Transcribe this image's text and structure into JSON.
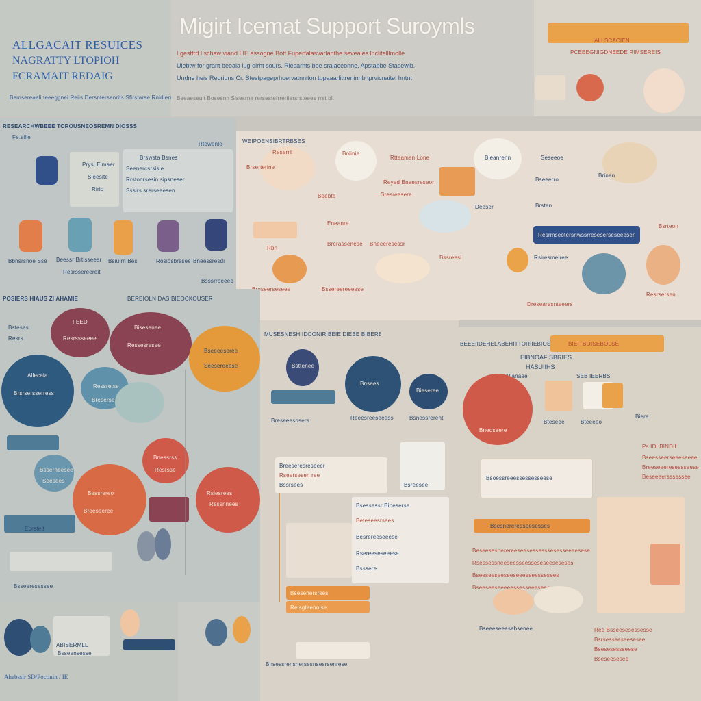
{
  "header": {
    "left_lines": [
      "ALLGACAIT RESUICES",
      "NAGRATTY LTOPIOH",
      "FCRAMAIT REDAIG"
    ],
    "left_footer": "Bemsereaeli teeeggnei Reiis Dersntersenrits Sfirstarse Rnidierres Rierssesri Sssrrs",
    "title": "Migirt Icemat Support Suroymls",
    "subtitle_lines": [
      "Lgestfrd l schaw viand I IE essogne Bott Fuperfalasvarlanthe seveales lnclitelllmolle",
      "Ulebtw for grant beeala lug oirht sours. Rlesarhts boe sralaceonne. Apstabbe Stasewlb.",
      "Undne heis Reoriuns Cr. Stestpageprhoervatnniton tppaaarlittreninnb tprvicnaitel hntnt"
    ],
    "subtitle_footer": "Beeaeseuit Bosesnn Sisesrne rersestefrreriiarsrsteees rrst bl.",
    "orange_bar_label": "",
    "right_label": "ALLSCACIEN",
    "right_sub": "PCEEEGNIGDNEEDE RIMSEREIS"
  },
  "left_top": {
    "heading": "RESEARCHWBEEE TOROUSNEOSREMN DIOSSS",
    "logo_label": "Fe.sllle",
    "card1_title": "Prysl Elmaer",
    "card1_lines": [
      "Sieesite",
      "Ririp"
    ],
    "card2_title": "Brswsta Bsnes",
    "card2_lines": [
      "Seenercsrsisie",
      "Rrstonrsesin sipsneser",
      "Sssirs srerseeesen"
    ],
    "tag": "Rtewenle",
    "icons": [
      "Bbnsrsnoe Sse",
      "Beessr Brtisseear",
      "Bsiuirn Bes",
      "Rosiosbrsseen",
      "Bneessresdi"
    ],
    "icons_sub": [
      "Resrssereereit",
      "Bsssrreeeee"
    ]
  },
  "center_top": {
    "heading": "WEIPOENSIBRTRBSES",
    "items": [
      "Reserrii",
      "Bolinie",
      "Rtteamen Lone",
      "Bieanrenn",
      "Seseeoe",
      "Brserterine",
      "Reyed Bnaesreseor",
      "Bseeerro",
      "Brinen",
      "Sresreesere",
      "Beebte",
      "Deeser",
      "Brsten",
      "Eneanre",
      "Bsrteon",
      "Brerassenese",
      "Rbn",
      "Bneeeresessr",
      "Rsiresmeiree",
      "Bssreesi"
    ],
    "navy_bar": "Resrmseotersnwssrreseserseseeeserese",
    "footer_items": [
      "Breseerseseee",
      "Bssereereeeese",
      "Dresearesnteeers",
      "Resrsersen"
    ]
  },
  "left_middle": {
    "heading": "POSIERS HIAUS ZI AHAMIE",
    "sub_heading": "BEREIOLN DASIBIEOCKOUSER",
    "circles": [
      {
        "label": "IIEED",
        "sub": "Resrssseeee"
      },
      {
        "label": "Bisesenee",
        "sub": "Ressesresee"
      },
      {
        "label": "Bseeeeseree",
        "sub": "Seesereeese"
      },
      {
        "label": "Allecaia",
        "sub": "Brsrsersserress"
      },
      {
        "label": "Ressretse",
        "sub": "Breserse"
      },
      {
        "label": "Bnessrss",
        "sub": "Resrsse"
      },
      {
        "label": "Bessrereo",
        "sub": "Breeseeree"
      },
      {
        "label": "Rsiesrees",
        "sub": "Ressnnees"
      },
      {
        "label": "Bsserneesee",
        "sub": "Seesees"
      }
    ],
    "side_labels": [
      "Bsteses",
      "Resrs",
      "Ebrsteit"
    ],
    "bottom_label": "Bsseeresessee"
  },
  "center_middle": {
    "heading": "MUSESNESH IDOONIRIBEIE DIEBE BIBEREE",
    "circles": [
      "Bsttenee",
      "Bnsaes",
      "Bieseree"
    ],
    "labels": [
      "Breseeesnsers",
      "Reeesreeseeess",
      "Bsnessrerent"
    ],
    "card_a_title": "Breeseresreseeer",
    "card_a_lines": [
      "Rseersesen ree",
      "Bssrsees",
      "Bsreesee"
    ],
    "card_b_title": "Bsessessr Bibeserse",
    "card_b_lines": [
      "Beteseesrsees",
      "Besrereeseeese",
      "Rsereeseseeese",
      "Bsssere"
    ],
    "orange_bars": [
      "Bsesenersrses",
      "Reisgteenoise"
    ],
    "footer": "Bnsessrensnersesnsesrsenrese"
  },
  "right_middle": {
    "heading": "BEEEIIDEHELABEHITTORIIEBIOSEOE",
    "orange_tag": "BIEF BOISEBOLSE",
    "title_lines": [
      "EIBNOAF SBRIES",
      "HASUIIHS"
    ],
    "row_labels": [
      "Allanaee",
      "SEB IEERBS"
    ],
    "red_circle": "Bnedsaere",
    "cards": [
      "Bteseee",
      "Bteeeeo",
      "Biere"
    ],
    "note_title": "Ps IDLBINDIL",
    "note_lines": [
      "Bseesseerseeeseeee",
      "Breeseeeresessseese",
      "Beseeeersssessee"
    ],
    "callout": "Bsoessreeessessesseese",
    "orange_bar": "Bsesnerereeseesesses",
    "text_lines": [
      "Beseesesnerereeseesessesssesesseeeeseses",
      "Rsessessneeseesseesseseseeseseses",
      "Bseeseeseeseeseeeeseessesees",
      "Bseeseeseeeeessesseeeseee"
    ],
    "footer": "Bseeeseeesebsenee",
    "side_footer": [
      "Ree Bsseesesessesse",
      "Bsrsessseseesesee",
      "Bsesesessseese",
      "Bseseesesee"
    ]
  },
  "bottom_left": {
    "label": "ABISERMLL",
    "sub": "Bsseensesse",
    "footer": "Ahebssir SD/Poconin / IE"
  },
  "colors": {
    "navy": "#2d4a70",
    "teal": "#4f7b96",
    "maroon": "#8a4352",
    "orange": "#e49a3b",
    "coral": "#cf6a4f",
    "peach": "#f0c6a2",
    "cream": "#ece6dc",
    "purple": "#5c4f7a"
  }
}
